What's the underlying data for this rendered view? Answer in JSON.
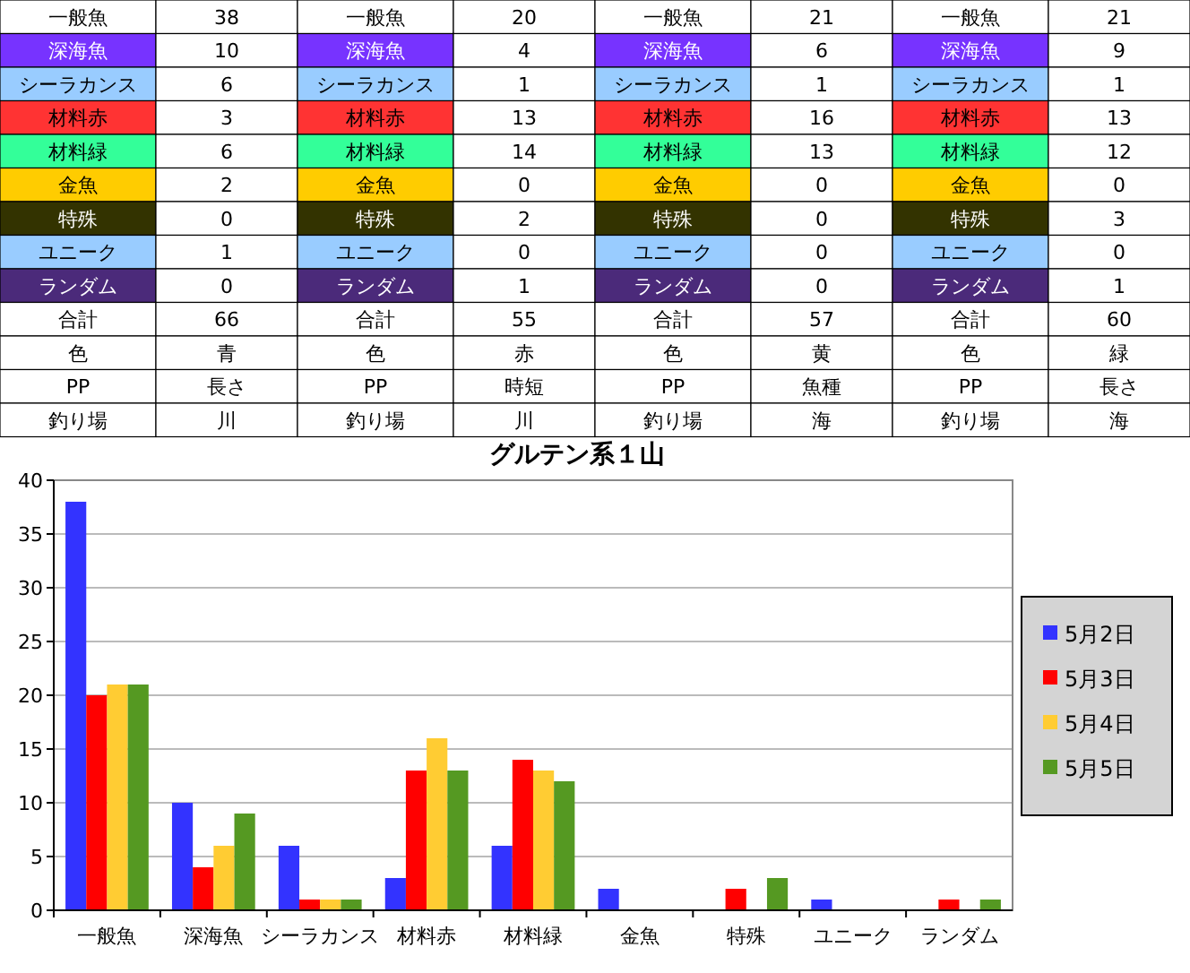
{
  "chart_data": [
    {
      "type": "other",
      "annotations": [
        "一般魚",
        "38",
        "一般魚",
        "20",
        "一般魚",
        "21",
        "一般魚",
        "21",
        "深海魚",
        "10",
        "深海魚",
        "4",
        "深海魚",
        "6",
        "深海魚",
        "9",
        "シーラカンス",
        "6",
        "シーラカンス",
        "1",
        "シーラカンス",
        "1",
        "シーラカンス",
        "1",
        "材料赤",
        "3",
        "材料赤",
        "13",
        "材料赤",
        "16",
        "材料赤",
        "13",
        "材料緑",
        "6",
        "材料緑",
        "14",
        "材料緑",
        "13",
        "材料緑",
        "12",
        "金魚",
        "2",
        "金魚",
        "0",
        "金魚",
        "0",
        "金魚",
        "0",
        "特殊",
        "0",
        "特殊",
        "2",
        "特殊",
        "0",
        "特殊",
        "3",
        "ユニーク",
        "1",
        "ユニーク",
        "0",
        "ユニーク",
        "0",
        "ユニーク",
        "0",
        "ランダム",
        "0",
        "ランダム",
        "1",
        "ランダム",
        "0",
        "ランダム",
        "1",
        "合計",
        "66",
        "合計",
        "55",
        "合計",
        "57",
        "合計",
        "60",
        "色",
        "青",
        "色",
        "赤",
        "色",
        "黄",
        "色",
        "緑",
        "PP",
        "長さ",
        "PP",
        "時短",
        "PP",
        "魚種",
        "PP",
        "長さ",
        "釣り場",
        "川",
        "釣り場",
        "川",
        "釣り場",
        "海",
        "釣り場",
        "海"
      ]
    },
    {
      "type": "bar",
      "title": "グルテン系１山",
      "categories": [
        "一般魚",
        "深海魚",
        "シーラカンス",
        "材料赤",
        "材料緑",
        "金魚",
        "特殊",
        "ユニーク",
        "ランダム"
      ],
      "series": [
        {
          "name": "5月2日",
          "color": "#3333ff",
          "values": [
            38,
            10,
            6,
            3,
            6,
            2,
            0,
            1,
            0
          ]
        },
        {
          "name": "5月3日",
          "color": "#ff0000",
          "values": [
            20,
            4,
            1,
            13,
            14,
            0,
            2,
            0,
            1
          ]
        },
        {
          "name": "5月4日",
          "color": "#ffcc33",
          "values": [
            21,
            6,
            1,
            16,
            13,
            0,
            0,
            0,
            0
          ]
        },
        {
          "name": "5月5日",
          "color": "#559922",
          "values": [
            21,
            9,
            1,
            13,
            12,
            0,
            3,
            0,
            1
          ]
        }
      ],
      "ylim": [
        0,
        40
      ],
      "yticks": [
        0,
        5,
        10,
        15,
        20,
        25,
        30,
        35,
        40
      ],
      "grid": "y",
      "legend": "right"
    }
  ]
}
